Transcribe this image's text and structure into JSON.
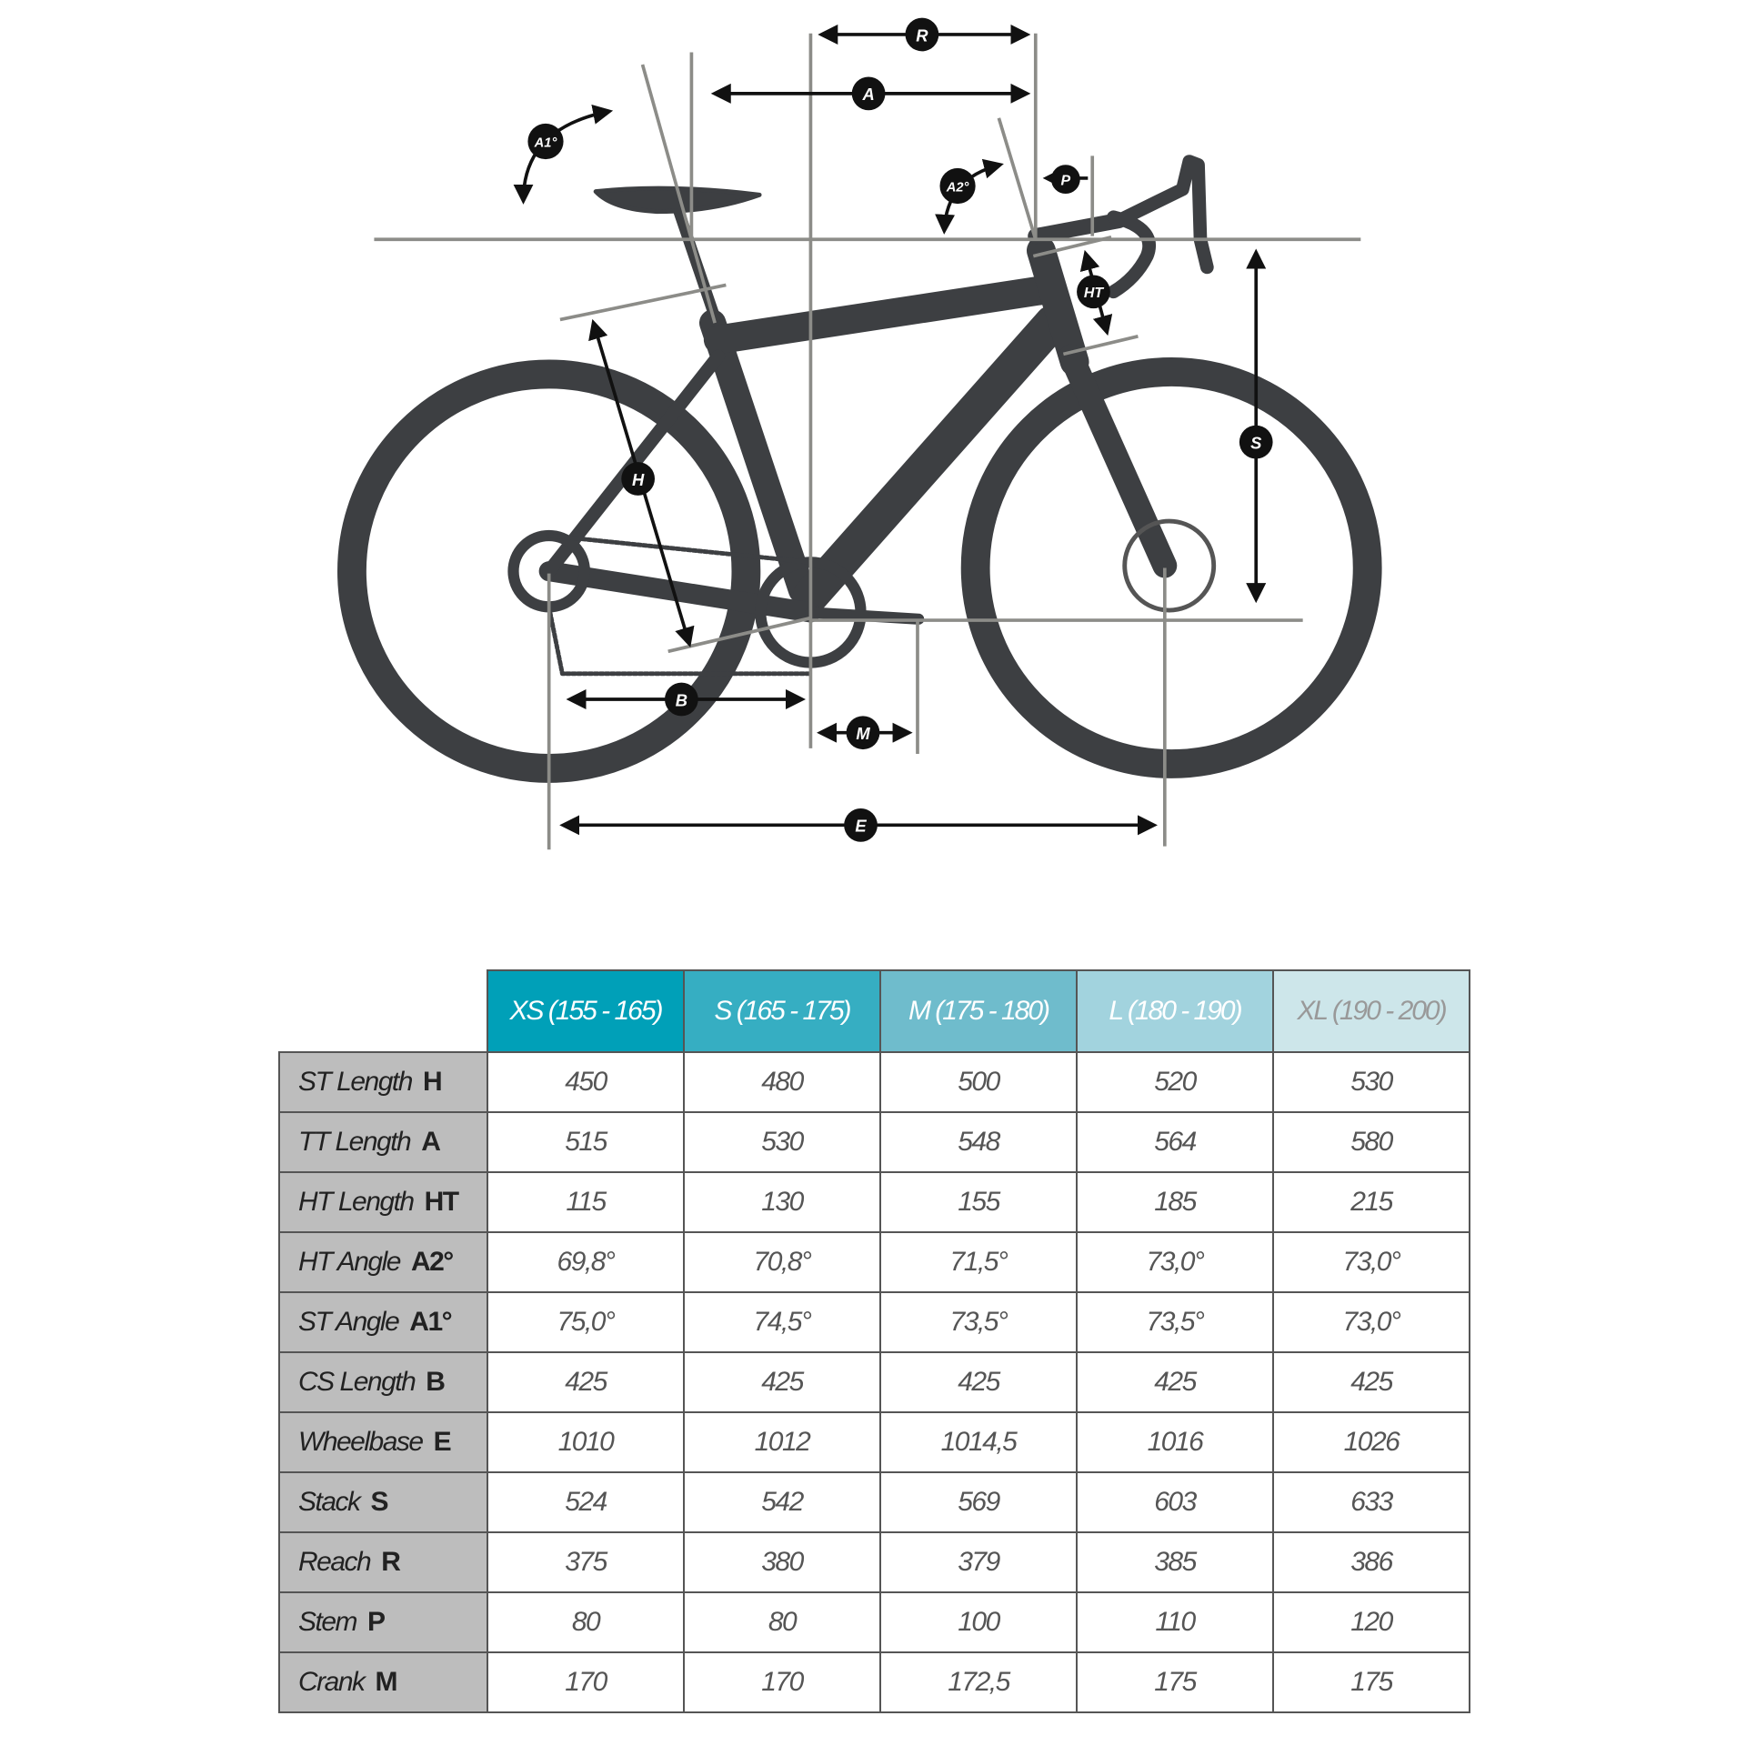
{
  "diagram_labels": {
    "R": "R",
    "A": "A",
    "A1": "A1°",
    "A2": "A2°",
    "P": "P",
    "HT": "HT",
    "S": "S",
    "H": "H",
    "B": "B",
    "M": "M",
    "E": "E"
  },
  "colors": {
    "frame": "#3d3f42",
    "guide": "#8c8c88",
    "arrow": "#111111",
    "xs": "#00a0b8",
    "s": "#36aec2",
    "m": "#6fbccc",
    "l": "#a2d3de",
    "xl": "#cde6ea",
    "row_label_bg": "#bdbdbd"
  },
  "table": {
    "headers": [
      "XS (155 - 165)",
      "S (165 - 175)",
      "M (175 - 180)",
      "L (180 - 190)",
      "XL (190 - 200)"
    ],
    "rows": [
      {
        "label": "ST Length",
        "code": "H",
        "values": [
          "450",
          "480",
          "500",
          "520",
          "530"
        ]
      },
      {
        "label": "TT Length",
        "code": "A",
        "values": [
          "515",
          "530",
          "548",
          "564",
          "580"
        ]
      },
      {
        "label": "HT Length",
        "code": "HT",
        "values": [
          "115",
          "130",
          "155",
          "185",
          "215"
        ]
      },
      {
        "label": "HT Angle",
        "code": "A2°",
        "values": [
          "69,8°",
          "70,8°",
          "71,5°",
          "73,0°",
          "73,0°"
        ]
      },
      {
        "label": "ST Angle",
        "code": "A1°",
        "values": [
          "75,0°",
          "74,5°",
          "73,5°",
          "73,5°",
          "73,0°"
        ]
      },
      {
        "label": "CS Length",
        "code": "B",
        "values": [
          "425",
          "425",
          "425",
          "425",
          "425"
        ]
      },
      {
        "label": "Wheelbase",
        "code": "E",
        "values": [
          "1010",
          "1012",
          "1014,5",
          "1016",
          "1026"
        ]
      },
      {
        "label": "Stack",
        "code": "S",
        "values": [
          "524",
          "542",
          "569",
          "603",
          "633"
        ]
      },
      {
        "label": "Reach",
        "code": "R",
        "values": [
          "375",
          "380",
          "379",
          "385",
          "386"
        ]
      },
      {
        "label": "Stem",
        "code": "P",
        "values": [
          "80",
          "80",
          "100",
          "110",
          "120"
        ]
      },
      {
        "label": "Crank",
        "code": "M",
        "values": [
          "170",
          "170",
          "172,5",
          "175",
          "175"
        ]
      }
    ]
  }
}
